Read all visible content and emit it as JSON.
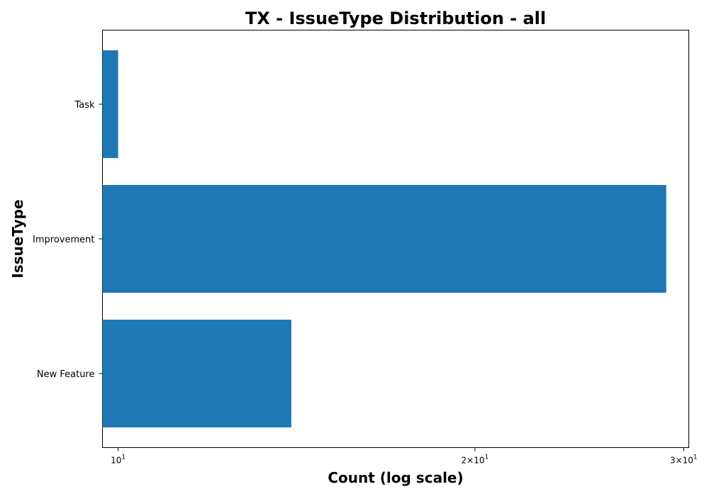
{
  "chart_data": {
    "type": "bar",
    "orientation": "horizontal",
    "title": "TX - IssueType Distribution - all",
    "xlabel": "Count (log scale)",
    "ylabel": "IssueType",
    "x_scale": "log",
    "xlim": [
      9.7,
      30.3
    ],
    "categories": [
      "New Feature",
      "Improvement",
      "Task"
    ],
    "values": [
      14,
      29,
      10
    ],
    "x_ticks": [
      {
        "value": 10,
        "base": "10",
        "exp": "1",
        "coef": ""
      },
      {
        "value": 20,
        "base": "10",
        "exp": "1",
        "coef": "2"
      },
      {
        "value": 30,
        "base": "10",
        "exp": "1",
        "coef": "3"
      }
    ],
    "bar_color": "#1f77b4",
    "grid": false,
    "legend": "none"
  }
}
